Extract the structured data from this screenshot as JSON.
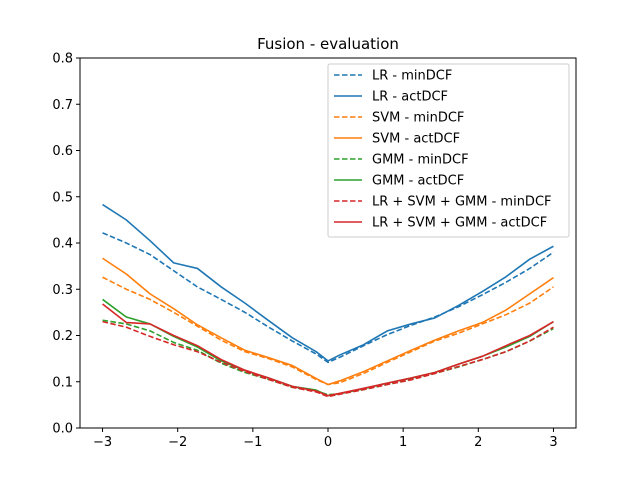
{
  "chart_data": {
    "type": "line",
    "title": "Fusion - evaluation",
    "xlabel": "",
    "ylabel": "",
    "xlim": [
      -3.3,
      3.3
    ],
    "ylim": [
      0.0,
      0.8
    ],
    "xticks": [
      "−3",
      "−2",
      "−1",
      "0",
      "1",
      "2",
      "3"
    ],
    "xtick_values": [
      -3,
      -2,
      -1,
      0,
      1,
      2,
      3
    ],
    "yticks": [
      "0.0",
      "0.1",
      "0.2",
      "0.3",
      "0.4",
      "0.5",
      "0.6",
      "0.7",
      "0.8"
    ],
    "ytick_values": [
      0.0,
      0.1,
      0.2,
      0.3,
      0.4,
      0.5,
      0.6,
      0.7,
      0.8
    ],
    "grid": false,
    "legend_position": "top-right",
    "x": [
      -3.0,
      -2.684,
      -2.368,
      -2.053,
      -1.737,
      -1.421,
      -1.105,
      -0.789,
      -0.474,
      -0.158,
      0.0,
      0.158,
      0.474,
      0.789,
      1.105,
      1.421,
      1.737,
      2.053,
      2.368,
      2.684,
      3.0
    ],
    "series": [
      {
        "name": "LR - minDCF",
        "color": "#1f77b4",
        "dash": true,
        "values": [
          0.422,
          0.4,
          0.375,
          0.34,
          0.305,
          0.278,
          0.25,
          0.218,
          0.188,
          0.16,
          0.142,
          0.153,
          0.178,
          0.202,
          0.222,
          0.24,
          0.262,
          0.288,
          0.315,
          0.345,
          0.38
        ]
      },
      {
        "name": "LR - actDCF",
        "color": "#1f77b4",
        "dash": false,
        "values": [
          0.483,
          0.45,
          0.405,
          0.357,
          0.345,
          0.305,
          0.27,
          0.232,
          0.195,
          0.165,
          0.145,
          0.158,
          0.18,
          0.21,
          0.225,
          0.238,
          0.265,
          0.295,
          0.327,
          0.365,
          0.393
        ]
      },
      {
        "name": "SVM - minDCF",
        "color": "#ff7f0e",
        "dash": true,
        "values": [
          0.326,
          0.3,
          0.278,
          0.25,
          0.22,
          0.19,
          0.165,
          0.15,
          0.132,
          0.105,
          0.094,
          0.098,
          0.118,
          0.142,
          0.165,
          0.188,
          0.205,
          0.225,
          0.245,
          0.27,
          0.305
        ]
      },
      {
        "name": "SVM - actDCF",
        "color": "#ff7f0e",
        "dash": false,
        "values": [
          0.367,
          0.333,
          0.29,
          0.258,
          0.223,
          0.195,
          0.168,
          0.152,
          0.135,
          0.107,
          0.094,
          0.102,
          0.122,
          0.145,
          0.168,
          0.19,
          0.21,
          0.228,
          0.255,
          0.29,
          0.325
        ]
      },
      {
        "name": "GMM - minDCF",
        "color": "#2ca02c",
        "dash": true,
        "values": [
          0.233,
          0.225,
          0.21,
          0.185,
          0.168,
          0.14,
          0.12,
          0.105,
          0.088,
          0.08,
          0.072,
          0.074,
          0.083,
          0.094,
          0.105,
          0.118,
          0.132,
          0.148,
          0.165,
          0.188,
          0.215
        ]
      },
      {
        "name": "GMM - actDCF",
        "color": "#2ca02c",
        "dash": false,
        "values": [
          0.278,
          0.24,
          0.225,
          0.198,
          0.175,
          0.145,
          0.124,
          0.108,
          0.09,
          0.082,
          0.07,
          0.074,
          0.085,
          0.097,
          0.108,
          0.12,
          0.138,
          0.155,
          0.175,
          0.198,
          0.23
        ]
      },
      {
        "name": "LR + SVM + GMM - minDCF",
        "color": "#d62728",
        "dash": true,
        "values": [
          0.23,
          0.218,
          0.198,
          0.18,
          0.165,
          0.142,
          0.122,
          0.105,
          0.088,
          0.078,
          0.068,
          0.073,
          0.083,
          0.094,
          0.104,
          0.118,
          0.133,
          0.148,
          0.165,
          0.188,
          0.218
        ]
      },
      {
        "name": "LR + SVM + GMM - actDCF",
        "color": "#d62728",
        "dash": false,
        "values": [
          0.268,
          0.228,
          0.225,
          0.2,
          0.178,
          0.148,
          0.125,
          0.108,
          0.09,
          0.08,
          0.07,
          0.075,
          0.086,
          0.097,
          0.108,
          0.12,
          0.138,
          0.155,
          0.178,
          0.2,
          0.23
        ]
      }
    ]
  }
}
